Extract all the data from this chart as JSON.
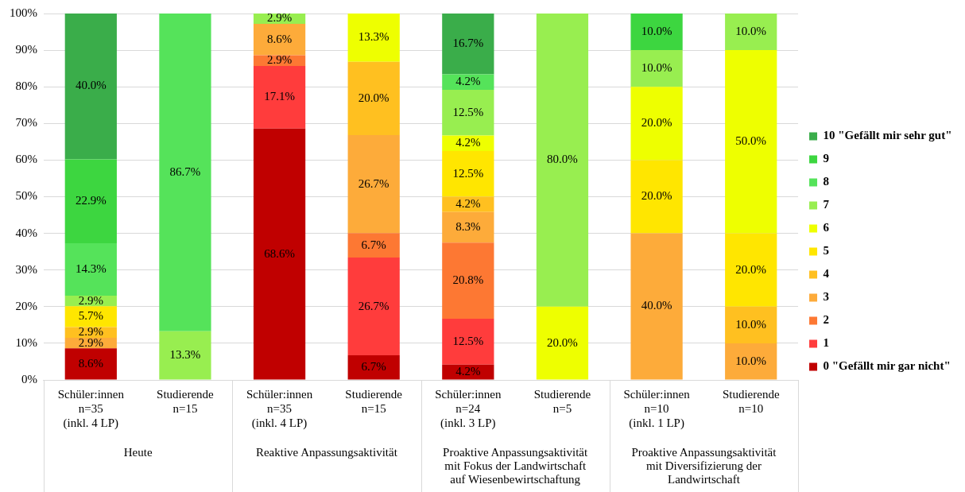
{
  "chart_data": {
    "type": "bar",
    "stacked": true,
    "categories": [
      "Schüler:innen\nn=35\n(inkl. 4 LP)",
      "Studierende\nn=15",
      "Schüler:innen\nn=35\n(inkl. 4 LP)",
      "Studierende\nn=15",
      "Schüler:innen\nn=24\n(inkl. 3 LP)",
      "Studierende\nn=5",
      "Schüler:innen\nn=10\n(inkl. 1 LP)",
      "Studierende\nn=10"
    ],
    "series": [
      {
        "name": "0 \"Gefällt mir gar nicht\"",
        "color": "#c00000",
        "values": [
          8.6,
          null,
          68.6,
          6.7,
          4.2,
          null,
          null,
          null
        ],
        "value_labels": [
          "8.6%",
          null,
          "68.6%",
          "6.7%",
          "4.2%",
          null,
          null,
          null
        ]
      },
      {
        "name": "1",
        "color": "#ff3c3c",
        "values": [
          null,
          null,
          17.1,
          26.7,
          12.5,
          null,
          null,
          null
        ],
        "value_labels": [
          null,
          null,
          "17.1%",
          "26.7%",
          "12.5%",
          null,
          null,
          null
        ]
      },
      {
        "name": "2",
        "color": "#fd7833",
        "values": [
          null,
          null,
          2.9,
          6.7,
          20.8,
          null,
          null,
          null
        ],
        "value_labels": [
          null,
          null,
          "2.9%",
          "6.7%",
          "20.8%",
          null,
          null,
          null
        ]
      },
      {
        "name": "3",
        "color": "#fdab3a",
        "values": [
          2.9,
          null,
          8.6,
          26.7,
          8.3,
          null,
          40.0,
          10.0
        ],
        "value_labels": [
          "2.9%",
          null,
          "8.6%",
          "26.7%",
          "8.3%",
          null,
          "40.0%",
          "10.0%"
        ]
      },
      {
        "name": "4",
        "color": "#ffc020",
        "values": [
          2.9,
          null,
          null,
          20.0,
          4.2,
          null,
          null,
          10.0
        ],
        "value_labels": [
          "2.9%",
          null,
          null,
          "20.0%",
          "4.2%",
          null,
          null,
          "10.0%"
        ]
      },
      {
        "name": "5",
        "color": "#ffe600",
        "values": [
          5.7,
          null,
          null,
          null,
          12.5,
          null,
          20.0,
          20.0
        ],
        "value_labels": [
          "5.7%",
          null,
          null,
          null,
          "12.5%",
          null,
          "20.0%",
          "20.0%"
        ]
      },
      {
        "name": "6",
        "color": "#eeff00",
        "values": [
          null,
          null,
          null,
          13.3,
          4.2,
          20.0,
          20.0,
          50.0
        ],
        "value_labels": [
          null,
          null,
          null,
          "13.3%",
          "4.2%",
          "20.0%",
          "20.0%",
          "50.0%"
        ]
      },
      {
        "name": "7",
        "color": "#98ee50",
        "values": [
          2.9,
          13.3,
          2.9,
          null,
          12.5,
          80.0,
          10.0,
          10.0
        ],
        "value_labels": [
          "2.9%",
          "13.3%",
          "2.9%",
          null,
          "12.5%",
          "80.0%",
          "10.0%",
          "10.0%"
        ]
      },
      {
        "name": "8",
        "color": "#55e35a",
        "values": [
          14.3,
          86.7,
          null,
          null,
          4.2,
          null,
          null,
          null
        ],
        "value_labels": [
          "14.3%",
          "86.7%",
          null,
          null,
          "4.2%",
          null,
          null,
          null
        ]
      },
      {
        "name": "9",
        "color": "#3dd640",
        "values": [
          22.9,
          null,
          null,
          null,
          null,
          null,
          10.0,
          null
        ],
        "value_labels": [
          "22.9%",
          null,
          null,
          null,
          null,
          null,
          "10.0%",
          null
        ]
      },
      {
        "name": "10 \"Gefällt mir sehr gut\"",
        "color": "#3aad4a",
        "values": [
          40.0,
          null,
          null,
          null,
          16.7,
          null,
          null,
          null
        ],
        "value_labels": [
          "40.0%",
          null,
          null,
          null,
          "16.7%",
          null,
          null,
          null
        ]
      }
    ],
    "ylim": [
      0,
      100
    ],
    "yticks": [
      {
        "value": 0,
        "label": "0%"
      },
      {
        "value": 10,
        "label": "10%"
      },
      {
        "value": 20,
        "label": "20%"
      },
      {
        "value": 30,
        "label": "30%"
      },
      {
        "value": 40,
        "label": "40%"
      },
      {
        "value": 50,
        "label": "50%"
      },
      {
        "value": 60,
        "label": "60%"
      },
      {
        "value": 70,
        "label": "70%"
      },
      {
        "value": 80,
        "label": "80%"
      },
      {
        "value": 90,
        "label": "90%"
      },
      {
        "value": 100,
        "label": "100%"
      }
    ],
    "grid": "y",
    "legend": "right",
    "annotations": [
      "Heute",
      "Reaktive Anpassungsaktivität",
      "Proaktive Anpassungsaktivität\nmit Fokus der Landwirtschaft\nauf Wiesenbewirtschaftung",
      "Proaktive Anpassungsaktivität\nmit Diversifizierung der\nLandwirtschaft"
    ]
  }
}
